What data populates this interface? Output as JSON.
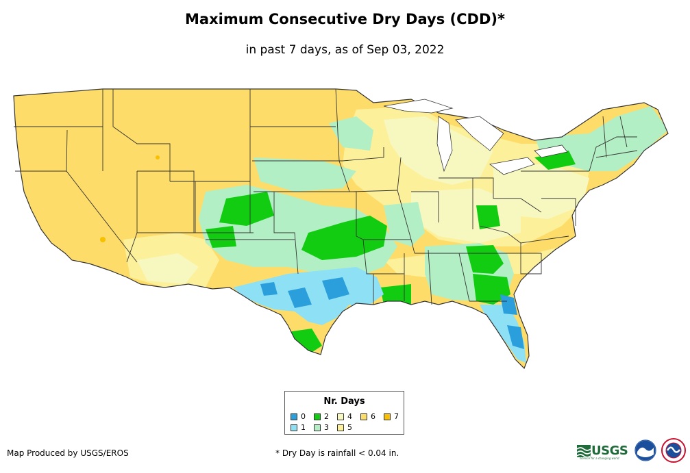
{
  "title": "Maximum Consecutive Dry Days (CDD)*",
  "subtitle": "in past 7 days, as of Sep 03, 2022",
  "legend": {
    "title": "Nr. Days",
    "items": [
      {
        "label": "0",
        "color": "#2a9fdc"
      },
      {
        "label": "1",
        "color": "#8ee0f5"
      },
      {
        "label": "2",
        "color": "#12cc12"
      },
      {
        "label": "3",
        "color": "#b3efc4"
      },
      {
        "label": "4",
        "color": "#f7f7c0"
      },
      {
        "label": "5",
        "color": "#fdf09a"
      },
      {
        "label": "6",
        "color": "#fddc6a"
      },
      {
        "label": "7",
        "color": "#f8c000"
      }
    ]
  },
  "footer": {
    "producer": "Map Produced by USGS/EROS",
    "note": "* Dry Day is rainfall < 0.04 in."
  },
  "logos": {
    "usgs_text": "USGS",
    "usgs_tagline": "science for a changing world"
  },
  "colors": {
    "base_land": "#fddc6a",
    "state_border": "#333333"
  }
}
